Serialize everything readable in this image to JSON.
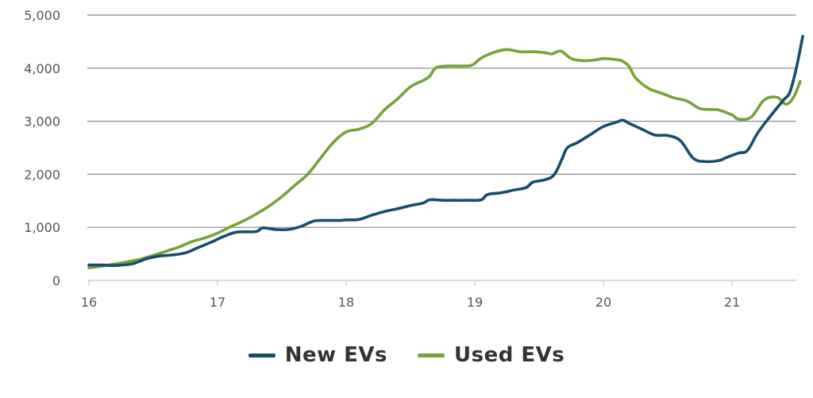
{
  "chart_data": {
    "type": "line",
    "xlabel": "",
    "ylabel": "",
    "xlim": [
      16,
      21.55
    ],
    "ylim": [
      0,
      5000
    ],
    "grid": true,
    "legend": "bottom",
    "x_ticks": [
      16,
      17,
      18,
      19,
      20,
      21
    ],
    "x_tick_labels": [
      "16",
      "17",
      "18",
      "19",
      "20",
      "21"
    ],
    "y_ticks": [
      0,
      1000,
      2000,
      3000,
      4000,
      5000
    ],
    "y_tick_labels": [
      "0",
      "1,000",
      "2,000",
      "3,000",
      "4,000",
      "5,000"
    ],
    "series": [
      {
        "name": "New EVs",
        "color": "#154e6b",
        "points": [
          [
            16.0,
            290
          ],
          [
            16.1,
            290
          ],
          [
            16.2,
            280
          ],
          [
            16.3,
            300
          ],
          [
            16.35,
            320
          ],
          [
            16.45,
            410
          ],
          [
            16.55,
            460
          ],
          [
            16.65,
            480
          ],
          [
            16.75,
            520
          ],
          [
            16.85,
            620
          ],
          [
            16.95,
            720
          ],
          [
            17.05,
            830
          ],
          [
            17.15,
            910
          ],
          [
            17.3,
            920
          ],
          [
            17.35,
            990
          ],
          [
            17.45,
            960
          ],
          [
            17.55,
            960
          ],
          [
            17.65,
            1020
          ],
          [
            17.75,
            1120
          ],
          [
            17.85,
            1130
          ],
          [
            17.95,
            1130
          ],
          [
            18.0,
            1140
          ],
          [
            18.1,
            1150
          ],
          [
            18.2,
            1230
          ],
          [
            18.3,
            1300
          ],
          [
            18.4,
            1350
          ],
          [
            18.5,
            1410
          ],
          [
            18.6,
            1460
          ],
          [
            18.65,
            1520
          ],
          [
            18.75,
            1510
          ],
          [
            18.85,
            1510
          ],
          [
            18.95,
            1510
          ],
          [
            19.05,
            1520
          ],
          [
            19.1,
            1620
          ],
          [
            19.2,
            1650
          ],
          [
            19.3,
            1700
          ],
          [
            19.4,
            1750
          ],
          [
            19.45,
            1850
          ],
          [
            19.55,
            1900
          ],
          [
            19.62,
            2000
          ],
          [
            19.68,
            2300
          ],
          [
            19.72,
            2500
          ],
          [
            19.8,
            2600
          ],
          [
            19.9,
            2750
          ],
          [
            20.0,
            2900
          ],
          [
            20.1,
            2980
          ],
          [
            20.15,
            3020
          ],
          [
            20.2,
            2960
          ],
          [
            20.3,
            2850
          ],
          [
            20.4,
            2740
          ],
          [
            20.5,
            2730
          ],
          [
            20.6,
            2630
          ],
          [
            20.7,
            2300
          ],
          [
            20.8,
            2240
          ],
          [
            20.9,
            2260
          ],
          [
            20.95,
            2310
          ],
          [
            21.05,
            2400
          ],
          [
            21.12,
            2450
          ],
          [
            21.2,
            2780
          ],
          [
            21.3,
            3100
          ],
          [
            21.4,
            3400
          ],
          [
            21.45,
            3550
          ],
          [
            21.5,
            4000
          ],
          [
            21.55,
            4600
          ]
        ]
      },
      {
        "name": "Used EVs",
        "color": "#76a239",
        "points": [
          [
            16.0,
            240
          ],
          [
            16.1,
            270
          ],
          [
            16.2,
            310
          ],
          [
            16.3,
            350
          ],
          [
            16.4,
            400
          ],
          [
            16.5,
            470
          ],
          [
            16.6,
            550
          ],
          [
            16.7,
            630
          ],
          [
            16.8,
            730
          ],
          [
            16.9,
            800
          ],
          [
            17.0,
            890
          ],
          [
            17.1,
            1010
          ],
          [
            17.2,
            1120
          ],
          [
            17.3,
            1250
          ],
          [
            17.4,
            1400
          ],
          [
            17.5,
            1580
          ],
          [
            17.6,
            1790
          ],
          [
            17.7,
            2000
          ],
          [
            17.8,
            2300
          ],
          [
            17.9,
            2600
          ],
          [
            18.0,
            2800
          ],
          [
            18.1,
            2850
          ],
          [
            18.2,
            2960
          ],
          [
            18.3,
            3220
          ],
          [
            18.4,
            3420
          ],
          [
            18.5,
            3650
          ],
          [
            18.6,
            3770
          ],
          [
            18.65,
            3850
          ],
          [
            18.7,
            4010
          ],
          [
            18.8,
            4040
          ],
          [
            18.9,
            4040
          ],
          [
            18.98,
            4060
          ],
          [
            19.05,
            4190
          ],
          [
            19.15,
            4300
          ],
          [
            19.25,
            4350
          ],
          [
            19.35,
            4310
          ],
          [
            19.45,
            4310
          ],
          [
            19.55,
            4290
          ],
          [
            19.6,
            4270
          ],
          [
            19.67,
            4320
          ],
          [
            19.75,
            4180
          ],
          [
            19.85,
            4140
          ],
          [
            19.95,
            4160
          ],
          [
            20.0,
            4180
          ],
          [
            20.1,
            4160
          ],
          [
            20.15,
            4130
          ],
          [
            20.2,
            4030
          ],
          [
            20.25,
            3820
          ],
          [
            20.35,
            3620
          ],
          [
            20.45,
            3530
          ],
          [
            20.55,
            3440
          ],
          [
            20.65,
            3380
          ],
          [
            20.75,
            3240
          ],
          [
            20.85,
            3220
          ],
          [
            20.9,
            3210
          ],
          [
            21.0,
            3120
          ],
          [
            21.05,
            3040
          ],
          [
            21.15,
            3080
          ],
          [
            21.25,
            3400
          ],
          [
            21.35,
            3450
          ],
          [
            21.42,
            3320
          ],
          [
            21.48,
            3460
          ],
          [
            21.53,
            3750
          ]
        ]
      }
    ]
  },
  "legend": {
    "items": [
      {
        "label": "New EVs",
        "color": "#154e6b"
      },
      {
        "label": "Used EVs",
        "color": "#76a239"
      }
    ]
  }
}
